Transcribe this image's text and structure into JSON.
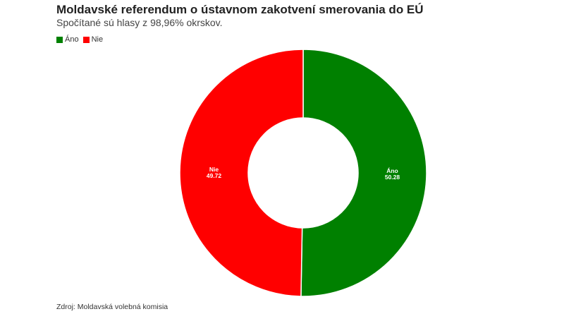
{
  "chart_data": {
    "type": "pie",
    "donut": true,
    "title": "Moldavské referendum o ústavnom zakotvení smerovania do EÚ",
    "subtitle": "Spočítané sú hlasy z 98,96% okrskov.",
    "categories": [
      "Áno",
      "Nie"
    ],
    "values": [
      50.28,
      49.72
    ],
    "value_labels": [
      "50.28",
      "49.72"
    ],
    "colors": [
      "#008000",
      "#ff0000"
    ],
    "legend": "top-left",
    "source": "Zdroj: Moldavská volebná komisia"
  }
}
